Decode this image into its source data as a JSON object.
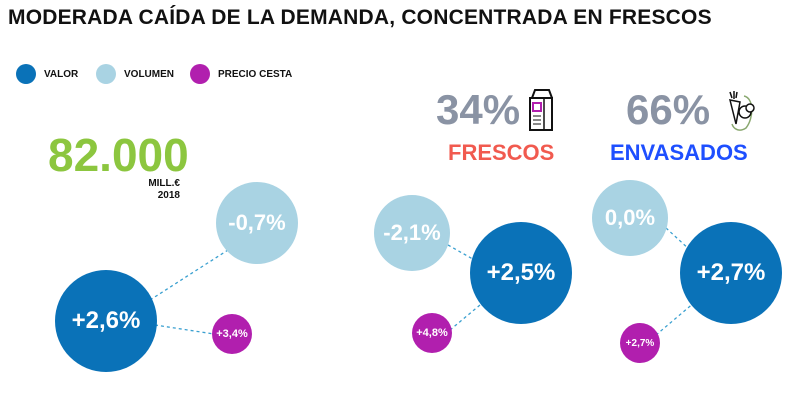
{
  "title": "MODERADA CAÍDA DE LA DEMANDA, CONCENTRADA EN FRESCOS",
  "legend": [
    {
      "label": "VALOR",
      "color": "#0a72b8"
    },
    {
      "label": "VOLUMEN",
      "color": "#a9d3e3"
    },
    {
      "label": "PRECIO CESTA",
      "color": "#b11fae"
    }
  ],
  "total": {
    "value": "82.000",
    "unit": "MILL.€",
    "year": "2018",
    "color": "#8cc63f"
  },
  "segments": [
    {
      "share": "34%",
      "label": "FRESCOS",
      "label_color": "#f15a4f",
      "icon": "milk-carton-icon"
    },
    {
      "share": "66%",
      "label": "ENVASADOS",
      "label_color": "#1e4fff",
      "icon": "vegetables-icon"
    }
  ],
  "groups": [
    {
      "valor": "+2,6%",
      "volumen": "-0,7%",
      "precio": "+3,4%"
    },
    {
      "valor": "+2,5%",
      "volumen": "-2,1%",
      "precio": "+4,8%"
    },
    {
      "valor": "+2,7%",
      "volumen": "0,0%",
      "precio": "+2,7%"
    }
  ]
}
